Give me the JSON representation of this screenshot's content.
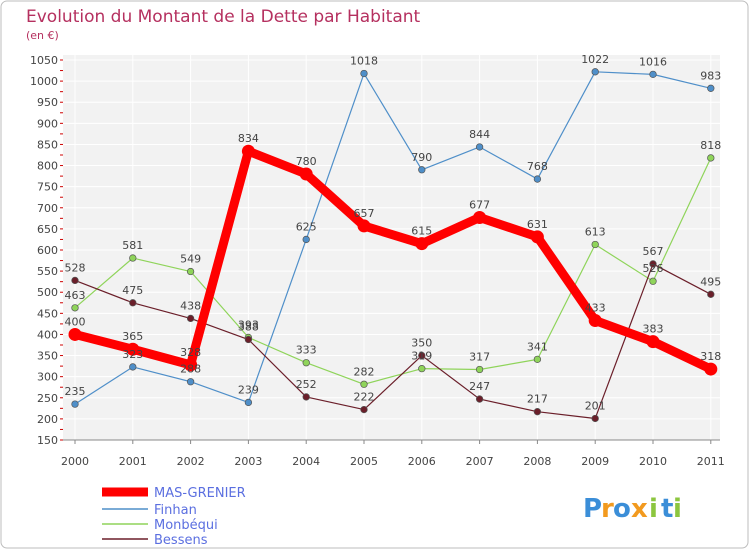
{
  "chart_data": {
    "type": "line",
    "title": "Evolution du Montant de la Dette par Habitant",
    "subtitle": "(en €)",
    "xlabel": "",
    "ylabel": "",
    "x": [
      "2000",
      "2001",
      "2002",
      "2003",
      "2004",
      "2005",
      "2006",
      "2007",
      "2008",
      "2009",
      "2010",
      "2011"
    ],
    "ylim": [
      150,
      1050
    ],
    "yticks": [
      150,
      200,
      250,
      300,
      350,
      400,
      450,
      500,
      550,
      600,
      650,
      700,
      750,
      800,
      850,
      900,
      950,
      1000,
      1050
    ],
    "grid": true,
    "legend_position": "bottom-left",
    "series": [
      {
        "name": "MAS-GRENIER",
        "color": "#ff0000",
        "values": [
          400,
          365,
          328,
          834,
          780,
          657,
          615,
          677,
          631,
          433,
          383,
          318
        ]
      },
      {
        "name": "Finhan",
        "color": "#4f8fc9",
        "values": [
          235,
          323,
          288,
          239,
          625,
          1018,
          790,
          844,
          768,
          1022,
          1016,
          983
        ]
      },
      {
        "name": "Monbéqui",
        "color": "#8fd45a",
        "values": [
          463,
          581,
          549,
          393,
          333,
          282,
          319,
          317,
          341,
          613,
          526,
          818
        ]
      },
      {
        "name": "Bessens",
        "color": "#6b1f2a",
        "values": [
          528,
          475,
          438,
          388,
          252,
          222,
          350,
          247,
          217,
          201,
          567,
          495
        ]
      }
    ]
  },
  "logo": {
    "letters": [
      "P",
      "r",
      "o",
      "x",
      "i",
      "t",
      "i"
    ],
    "colors": [
      "#3b8ed8",
      "#f29a1f",
      "#3b8ed8",
      "#f29a1f",
      "#8cc63f",
      "#3b8ed8",
      "#8cc63f"
    ]
  }
}
